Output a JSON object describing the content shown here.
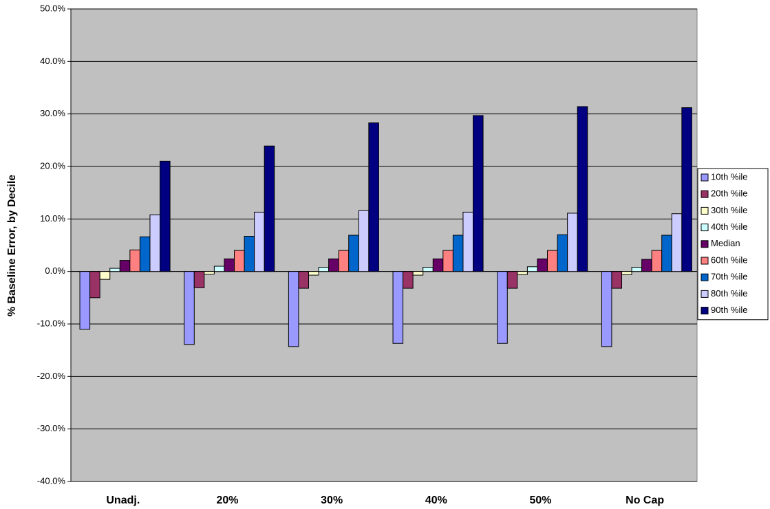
{
  "chart_data": {
    "type": "bar",
    "y_label": "% Baseline Error, by Decile",
    "categories": [
      "Unadj.",
      "20%",
      "30%",
      "40%",
      "50%",
      "No Cap"
    ],
    "series": [
      {
        "name": "10th %ile",
        "color": "#9999ff",
        "values": [
          -11.0,
          -13.9,
          -14.3,
          -13.7,
          -13.7,
          -14.3
        ]
      },
      {
        "name": "20th %ile",
        "color": "#993366",
        "values": [
          -5.0,
          -3.1,
          -3.2,
          -3.2,
          -3.2,
          -3.2
        ]
      },
      {
        "name": "30th %ile",
        "color": "#ffffcc",
        "values": [
          -1.5,
          -0.5,
          -0.7,
          -0.7,
          -0.6,
          -0.6
        ]
      },
      {
        "name": "40th %ile",
        "color": "#ccffff",
        "values": [
          0.6,
          1.0,
          0.8,
          0.8,
          0.9,
          0.8
        ]
      },
      {
        "name": "Median",
        "color": "#660066",
        "values": [
          2.1,
          2.4,
          2.4,
          2.4,
          2.4,
          2.3
        ]
      },
      {
        "name": "60th %ile",
        "color": "#ff8080",
        "values": [
          4.1,
          4.0,
          4.0,
          4.0,
          4.0,
          4.0
        ]
      },
      {
        "name": "70th %ile",
        "color": "#0066cc",
        "values": [
          6.6,
          6.7,
          6.9,
          6.9,
          7.0,
          6.9
        ]
      },
      {
        "name": "80th %ile",
        "color": "#ccccff",
        "values": [
          10.8,
          11.3,
          11.6,
          11.3,
          11.1,
          11.0
        ]
      },
      {
        "name": "90th %ile",
        "color": "#000080",
        "values": [
          21.0,
          23.9,
          28.3,
          29.7,
          31.4,
          31.2
        ]
      }
    ],
    "ylim": [
      -40,
      50
    ],
    "yticks": [
      {
        "value": -40,
        "label": "-40.0%"
      },
      {
        "value": -30,
        "label": "-30.0%"
      },
      {
        "value": -20,
        "label": "-20.0%"
      },
      {
        "value": -10,
        "label": "-10.0%"
      },
      {
        "value": 0,
        "label": "0.0%"
      },
      {
        "value": 10,
        "label": "10.0%"
      },
      {
        "value": 20,
        "label": "20.0%"
      },
      {
        "value": 30,
        "label": "30.0%"
      },
      {
        "value": 40,
        "label": "40.0%"
      },
      {
        "value": 50,
        "label": "50.0%"
      }
    ],
    "grid": true,
    "plot_background": "#c0c0c0",
    "legend": "right"
  }
}
